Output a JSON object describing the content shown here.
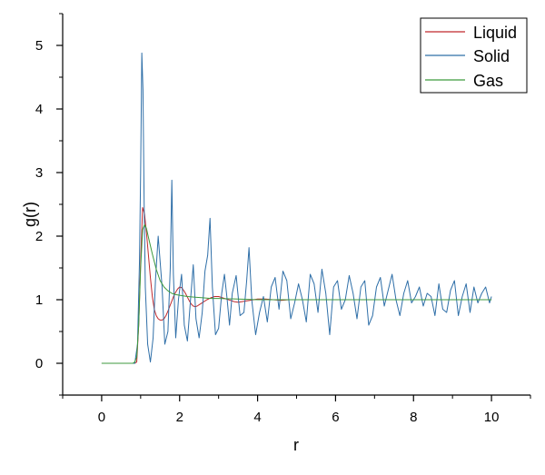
{
  "chart_data": {
    "type": "line",
    "title": "",
    "xlabel": "r",
    "ylabel": "g(r)",
    "xlim": [
      -1,
      11
    ],
    "ylim": [
      -0.5,
      5.5
    ],
    "xticks": [
      0,
      2,
      4,
      6,
      8,
      10
    ],
    "yticks": [
      0,
      1,
      2,
      3,
      4,
      5
    ],
    "x_tick_labels": [
      "0",
      "2",
      "4",
      "6",
      "8",
      "10"
    ],
    "y_tick_labels": [
      "0",
      "1",
      "2",
      "3",
      "4",
      "5"
    ],
    "grid": false,
    "legend_position": "top-right",
    "series": [
      {
        "name": "Liquid",
        "color": "#c0282c",
        "x": [
          0,
          0.85,
          0.9,
          0.95,
          1.0,
          1.05,
          1.1,
          1.15,
          1.2,
          1.25,
          1.3,
          1.35,
          1.4,
          1.45,
          1.5,
          1.55,
          1.6,
          1.65,
          1.7,
          1.75,
          1.8,
          1.85,
          1.9,
          1.95,
          2.0,
          2.05,
          2.1,
          2.15,
          2.2,
          2.25,
          2.3,
          2.35,
          2.4,
          2.45,
          2.5,
          2.6,
          2.7,
          2.8,
          2.9,
          3.0,
          3.1,
          3.2,
          3.3,
          3.4,
          3.5,
          3.6,
          3.7,
          3.8,
          3.9,
          4.0,
          4.2,
          4.4,
          4.6,
          4.8,
          5.0,
          5.5,
          6.0,
          6.5,
          7.0,
          7.5,
          8.0,
          8.5,
          9.0,
          9.5,
          10.0
        ],
        "y": [
          0,
          0,
          0.02,
          0.6,
          1.6,
          2.45,
          2.35,
          2.05,
          1.7,
          1.35,
          1.05,
          0.85,
          0.75,
          0.7,
          0.68,
          0.68,
          0.7,
          0.75,
          0.82,
          0.9,
          0.98,
          1.06,
          1.12,
          1.17,
          1.2,
          1.19,
          1.15,
          1.1,
          1.04,
          0.98,
          0.93,
          0.9,
          0.89,
          0.9,
          0.92,
          0.96,
          1.0,
          1.03,
          1.05,
          1.05,
          1.03,
          1.01,
          0.99,
          0.97,
          0.96,
          0.97,
          0.98,
          0.99,
          1.0,
          1.01,
          1.01,
          1.0,
          0.99,
          1.0,
          1.0,
          1.0,
          1.0,
          1.0,
          1.0,
          1.0,
          1.0,
          1.0,
          1.0,
          1.0,
          1.0
        ]
      },
      {
        "name": "Solid",
        "color": "#2f6fa8",
        "x": [
          0,
          0.85,
          0.92,
          0.97,
          1.0,
          1.03,
          1.06,
          1.09,
          1.12,
          1.18,
          1.25,
          1.32,
          1.38,
          1.45,
          1.55,
          1.62,
          1.7,
          1.76,
          1.8,
          1.84,
          1.9,
          1.97,
          2.05,
          2.12,
          2.2,
          2.28,
          2.35,
          2.42,
          2.5,
          2.58,
          2.65,
          2.72,
          2.78,
          2.84,
          2.92,
          3.0,
          3.08,
          3.15,
          3.22,
          3.28,
          3.35,
          3.45,
          3.55,
          3.65,
          3.72,
          3.78,
          3.85,
          3.95,
          4.05,
          4.15,
          4.25,
          4.35,
          4.45,
          4.55,
          4.65,
          4.75,
          4.85,
          4.95,
          5.05,
          5.15,
          5.25,
          5.35,
          5.45,
          5.55,
          5.65,
          5.75,
          5.85,
          5.95,
          6.05,
          6.15,
          6.25,
          6.35,
          6.45,
          6.55,
          6.65,
          6.75,
          6.85,
          6.95,
          7.05,
          7.15,
          7.25,
          7.35,
          7.45,
          7.55,
          7.65,
          7.75,
          7.85,
          7.95,
          8.05,
          8.15,
          8.25,
          8.35,
          8.45,
          8.55,
          8.65,
          8.75,
          8.85,
          8.95,
          9.05,
          9.15,
          9.25,
          9.35,
          9.45,
          9.55,
          9.65,
          9.75,
          9.85,
          9.95,
          10.0
        ],
        "y": [
          0,
          0,
          0.3,
          1.6,
          3.0,
          4.88,
          4.3,
          2.5,
          1.2,
          0.3,
          0.02,
          0.4,
          1.3,
          2.0,
          1.2,
          0.3,
          0.5,
          1.5,
          2.88,
          1.4,
          0.4,
          1.0,
          1.4,
          0.6,
          0.35,
          1.0,
          1.55,
          0.7,
          0.4,
          0.8,
          1.45,
          1.7,
          2.28,
          1.2,
          0.45,
          0.55,
          1.1,
          1.4,
          1.0,
          0.6,
          1.1,
          1.38,
          0.75,
          0.8,
          1.3,
          1.82,
          1.0,
          0.45,
          0.8,
          1.05,
          0.65,
          1.2,
          1.35,
          0.85,
          1.45,
          1.3,
          0.7,
          0.95,
          1.25,
          1.0,
          0.65,
          1.4,
          1.25,
          0.8,
          1.48,
          1.1,
          0.45,
          1.2,
          1.3,
          0.85,
          1.0,
          1.38,
          1.1,
          0.7,
          1.2,
          1.3,
          0.6,
          0.75,
          1.2,
          1.35,
          0.9,
          1.15,
          1.4,
          1.0,
          0.75,
          1.1,
          1.3,
          0.95,
          1.05,
          1.2,
          0.9,
          1.1,
          1.05,
          0.75,
          1.25,
          0.85,
          0.8,
          1.15,
          1.3,
          0.75,
          1.05,
          1.25,
          0.8,
          1.2,
          0.95,
          1.1,
          1.2,
          0.95,
          1.05
        ]
      },
      {
        "name": "Gas",
        "color": "#3c9a3c",
        "x": [
          0,
          0.8,
          0.85,
          0.9,
          0.95,
          1.0,
          1.05,
          1.1,
          1.15,
          1.2,
          1.3,
          1.4,
          1.5,
          1.6,
          1.7,
          1.8,
          1.9,
          2.0,
          2.2,
          2.4,
          2.6,
          2.8,
          3.0,
          3.5,
          4.0,
          5.0,
          6.0,
          7.0,
          8.0,
          9.0,
          10.0
        ],
        "y": [
          0,
          0,
          0.02,
          0.1,
          0.6,
          1.5,
          2.1,
          2.18,
          2.12,
          1.98,
          1.72,
          1.48,
          1.3,
          1.2,
          1.14,
          1.1,
          1.08,
          1.07,
          1.05,
          1.04,
          1.03,
          1.02,
          1.02,
          1.01,
          1.0,
          1.0,
          1.0,
          1.0,
          1.0,
          1.0,
          1.0
        ]
      }
    ]
  }
}
